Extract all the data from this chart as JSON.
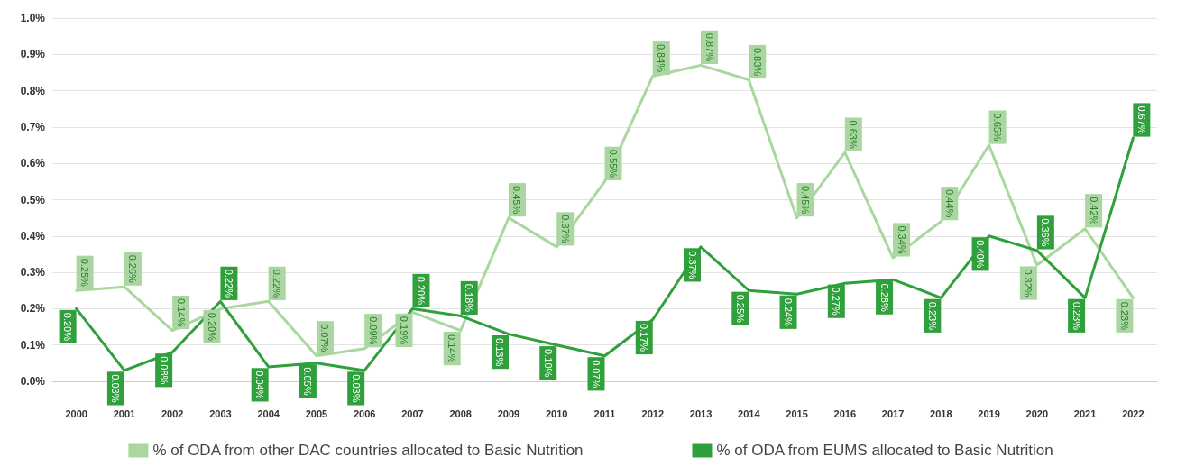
{
  "chart_data": {
    "type": "line",
    "categories": [
      "2000",
      "2001",
      "2002",
      "2003",
      "2004",
      "2005",
      "2006",
      "2007",
      "2008",
      "2009",
      "2010",
      "2011",
      "2012",
      "2013",
      "2014",
      "2015",
      "2016",
      "2017",
      "2018",
      "2019",
      "2020",
      "2021",
      "2022"
    ],
    "series": [
      {
        "name": "% of ODA from other DAC countries allocated to Basic Nutrition",
        "color": "#a9d79f",
        "values": [
          0.25,
          0.26,
          0.14,
          0.2,
          0.22,
          0.07,
          0.09,
          0.19,
          0.14,
          0.45,
          0.37,
          0.55,
          0.84,
          0.87,
          0.83,
          0.45,
          0.63,
          0.34,
          0.44,
          0.65,
          0.32,
          0.42,
          0.23
        ],
        "value_labels": [
          "0.25%",
          "0.26%",
          "0.14%",
          "0.20%",
          "0.22%",
          "0.07%",
          "0.09%",
          "0.19%",
          "0.14%",
          "0.45%",
          "0.37%",
          "0.55%",
          "0.84%",
          "0.87%",
          "0.83%",
          "0.45%",
          "0.63%",
          "0.34%",
          "0.44%",
          "0.65%",
          "0.32%",
          "0.42%",
          "0.23%"
        ]
      },
      {
        "name": "% of ODA from EUMS allocated to Basic Nutrition",
        "color": "#30a03c",
        "values": [
          0.2,
          0.03,
          0.08,
          0.22,
          0.04,
          0.05,
          0.03,
          0.2,
          0.18,
          0.13,
          0.1,
          0.07,
          0.17,
          0.37,
          0.25,
          0.24,
          0.27,
          0.28,
          0.23,
          0.4,
          0.36,
          0.23,
          0.67
        ],
        "value_labels": [
          "0.20%",
          "0.03%",
          "0.08%",
          "0.22%",
          "0.04%",
          "0.05%",
          "0.03%",
          "0.20%",
          "0.18%",
          "0.13%",
          "0.10%",
          "0.07%",
          "0.17%",
          "0.37%",
          "0.25%",
          "0.24%",
          "0.27%",
          "0.28%",
          "0.23%",
          "0.40%",
          "0.36%",
          "0.23%",
          "0.67%"
        ]
      }
    ],
    "ylim": [
      0,
      1
    ],
    "yticks": [
      {
        "value": 0,
        "label": "0.0%"
      },
      {
        "value": 0.1,
        "label": "0.1%"
      },
      {
        "value": 0.2,
        "label": "0.2%"
      },
      {
        "value": 0.3,
        "label": "0.3%"
      },
      {
        "value": 0.4,
        "label": "0.4%"
      },
      {
        "value": 0.5,
        "label": "0.5%"
      },
      {
        "value": 0.6,
        "label": "0.6%"
      },
      {
        "value": 0.7,
        "label": "0.7%"
      },
      {
        "value": 0.8,
        "label": "0.8%"
      },
      {
        "value": 0.9,
        "label": "0.9%"
      },
      {
        "value": 1,
        "label": "1.0%"
      }
    ],
    "grid": "y",
    "legend": "bottom",
    "marker": "none",
    "line_style": "solid"
  }
}
